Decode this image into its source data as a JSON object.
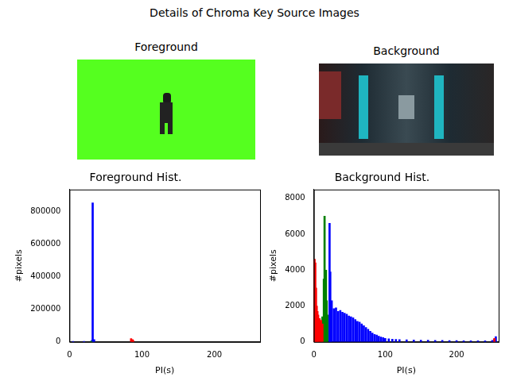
{
  "title": "Details of Chroma Key Source Images",
  "images": [
    {
      "title": "Foreground"
    },
    {
      "title": "Background"
    }
  ],
  "chart_data": [
    {
      "type": "bar",
      "title": "Foreground Hist.",
      "x_label": "PI(s)",
      "y_label": "#pixels",
      "xlim": [
        0,
        263
      ],
      "xticks": [
        0,
        100,
        200
      ],
      "ylim": [
        0,
        937000
      ],
      "yticks": [
        0,
        200000,
        400000,
        600000,
        800000
      ],
      "grid": false,
      "series": [
        {
          "color": "green",
          "x": [
            30
          ],
          "values": [
            5000
          ]
        },
        {
          "color": "red",
          "x": [
            85,
            87,
            88
          ],
          "values": [
            20000,
            15000,
            8000
          ]
        },
        {
          "color": "blue",
          "x": [
            5,
            20,
            31,
            32,
            34
          ],
          "values": [
            3000,
            4000,
            10000,
            855000,
            15000
          ]
        }
      ]
    },
    {
      "type": "bar",
      "title": "Background Hist.",
      "x_label": "PI(s)",
      "y_label": "#pixels",
      "xlim": [
        0,
        259
      ],
      "xticks": [
        0,
        100,
        200
      ],
      "ylim": [
        0,
        8480
      ],
      "yticks": [
        0,
        2000,
        4000,
        6000,
        8000
      ],
      "grid": false,
      "series": [
        {
          "color": "red",
          "x": [
            0,
            1,
            2,
            3,
            4,
            5,
            6,
            8,
            10,
            12,
            253
          ],
          "values": [
            4500,
            4600,
            4400,
            3000,
            2000,
            1700,
            1500,
            1300,
            1200,
            1000,
            200
          ]
        },
        {
          "color": "green",
          "x": [
            10,
            12,
            14,
            15,
            16,
            17,
            18,
            19
          ],
          "values": [
            1000,
            1400,
            3500,
            7000,
            2400,
            4000,
            2300,
            1500
          ]
        },
        {
          "color": "blue",
          "x": [
            22,
            23,
            25,
            28,
            31,
            34,
            37,
            40,
            43,
            46,
            49,
            52,
            55,
            58,
            61,
            64,
            67,
            70,
            73,
            76,
            79,
            82,
            85,
            88,
            91,
            94,
            97,
            100,
            105,
            110,
            115,
            120,
            130,
            140,
            150,
            160,
            170,
            180,
            190,
            200,
            210,
            220,
            230,
            240,
            250,
            253,
            255
          ],
          "values": [
            6600,
            3900,
            2300,
            1850,
            1900,
            1700,
            1750,
            1650,
            1600,
            1550,
            1450,
            1400,
            1350,
            1250,
            1150,
            1100,
            1000,
            900,
            800,
            700,
            600,
            500,
            420,
            380,
            320,
            280,
            240,
            200,
            170,
            150,
            140,
            130,
            120,
            110,
            100,
            100,
            90,
            90,
            80,
            80,
            70,
            70,
            60,
            60,
            90,
            150,
            300
          ]
        }
      ]
    }
  ]
}
